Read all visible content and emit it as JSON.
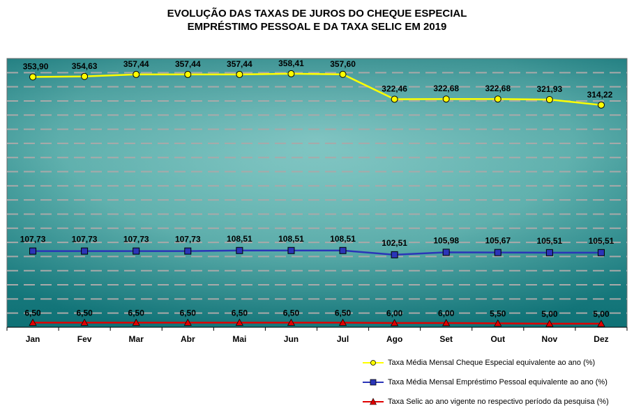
{
  "title": {
    "line1": "EVOLUÇÃO DAS TAXAS DE JUROS DO CHEQUE ESPECIAL",
    "line2": "EMPRÉSTIMO PESSOAL E DA TAXA SELIC EM 2019"
  },
  "chart_data": {
    "type": "line",
    "categories": [
      "Jan",
      "Fev",
      "Mar",
      "Abr",
      "Mai",
      "Jun",
      "Jul",
      "Ago",
      "Set",
      "Out",
      "Nov",
      "Dez"
    ],
    "ylim": [
      0,
      380
    ],
    "grid": true,
    "legend_position": "bottom-right",
    "series": [
      {
        "name": "Taxa Média Mensal Cheque Especial equivalente ao ano (%)",
        "color": "#ffff00",
        "marker": "circle",
        "values": [
          353.9,
          354.63,
          357.44,
          357.44,
          357.44,
          358.41,
          357.6,
          322.46,
          322.68,
          322.68,
          321.93,
          314.22
        ],
        "labels": [
          "353,90",
          "354,63",
          "357,44",
          "357,44",
          "357,44",
          "358,41",
          "357,60",
          "322,46",
          "322,68",
          "322,68",
          "321,93",
          "314,22"
        ]
      },
      {
        "name": "Taxa Média Mensal Empréstimo Pessoal equivalente ao ano (%)",
        "color": "#2b35b8",
        "marker": "square",
        "values": [
          107.73,
          107.73,
          107.73,
          107.73,
          108.51,
          108.51,
          108.51,
          102.51,
          105.98,
          105.67,
          105.51,
          105.51
        ],
        "labels": [
          "107,73",
          "107,73",
          "107,73",
          "107,73",
          "108,51",
          "108,51",
          "108,51",
          "102,51",
          "105,98",
          "105,67",
          "105,51",
          "105,51"
        ]
      },
      {
        "name": "Taxa Selic ao ano vigente no respectivo período da pesquisa (%)",
        "color": "#e00000",
        "marker": "triangle",
        "values": [
          6.5,
          6.5,
          6.5,
          6.5,
          6.5,
          6.5,
          6.5,
          6.0,
          6.0,
          5.5,
          5.0,
          5.0
        ],
        "labels": [
          "6,50",
          "6,50",
          "6,50",
          "6,50",
          "6,50",
          "6,50",
          "6,50",
          "6,00",
          "6,00",
          "5,50",
          "5,00",
          "5,00"
        ]
      }
    ]
  }
}
